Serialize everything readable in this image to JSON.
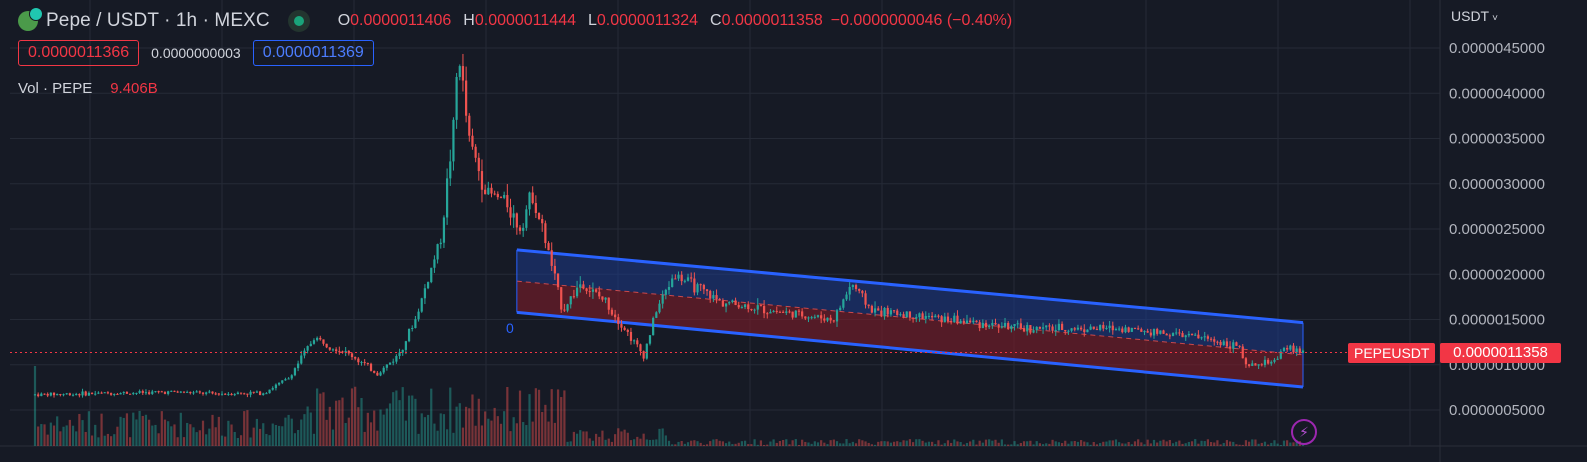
{
  "header": {
    "symbol": "Pepe / USDT · 1h · MEXC",
    "ohlc": [
      {
        "label": "O",
        "value": "0.0000011406"
      },
      {
        "label": "H",
        "value": "0.0000011444"
      },
      {
        "label": "L",
        "value": "0.0000011324"
      },
      {
        "label": "C",
        "value": "0.0000011358"
      }
    ],
    "change": "−0.0000000046 (−0.40%)",
    "sell_price": "0.0000011366",
    "spread": "0.0000000003",
    "buy_price": "0.0000011369",
    "volume_label": "Vol · PEPE",
    "volume_value": "9.406B"
  },
  "currency": {
    "label": "USDT",
    "chevron": "˅"
  },
  "price_tag": {
    "symbol": "PEPEUSDT",
    "last": "0.0000011358"
  },
  "channel_label": "0",
  "bolt_icon": "⚡",
  "colors": {
    "up": "#26a69a",
    "down": "#ef5350",
    "channel_line": "#2962ff",
    "channel_fill_upper": "#1e3a8a",
    "channel_fill_lower": "#7f1d2a",
    "accent_red": "#f23645",
    "background": "#161a25",
    "grid": "#252a36"
  },
  "chart_data": {
    "type": "candlestick",
    "title": "Pepe / USDT · 1h · MEXC",
    "y_axis": {
      "min": 0,
      "max": 5e-06,
      "ticks": [
        {
          "value": 4.5e-06,
          "label": "0.0000045000"
        },
        {
          "value": 4e-06,
          "label": "0.0000040000"
        },
        {
          "value": 3.5e-06,
          "label": "0.0000035000"
        },
        {
          "value": 3e-06,
          "label": "0.0000030000"
        },
        {
          "value": 2.5e-06,
          "label": "0.0000025000"
        },
        {
          "value": 2e-06,
          "label": "0.0000020000"
        },
        {
          "value": 1.5e-06,
          "label": "0.0000015000"
        },
        {
          "value": 1e-06,
          "label": "0.0000010000"
        },
        {
          "value": 5e-07,
          "label": "0.0000005000"
        }
      ]
    },
    "bars": 400,
    "last_price": 1.1358e-06,
    "close_path": [
      [
        0,
        6.7e-07
      ],
      [
        55,
        7e-07
      ],
      [
        70,
        6.8e-07
      ],
      [
        90,
        6.9e-07
      ],
      [
        100,
        8.5e-07
      ],
      [
        110,
        1.3e-06
      ],
      [
        125,
        1.1e-06
      ],
      [
        135,
        9e-07
      ],
      [
        143,
        1.1e-06
      ],
      [
        150,
        1.5e-06
      ],
      [
        160,
        2.4e-06
      ],
      [
        165,
        3.6e-06
      ],
      [
        167,
        4.5e-06
      ],
      [
        171,
        3.5e-06
      ],
      [
        178,
        2.9e-06
      ],
      [
        186,
        2.8e-06
      ],
      [
        191,
        2.5e-06
      ],
      [
        196,
        2.9e-06
      ],
      [
        202,
        2.3e-06
      ],
      [
        208,
        1.6e-06
      ],
      [
        215,
        1.9e-06
      ],
      [
        225,
        1.7e-06
      ],
      [
        235,
        1.3e-06
      ],
      [
        240,
        1.1e-06
      ],
      [
        245,
        1.6e-06
      ],
      [
        252,
        2e-06
      ],
      [
        270,
        1.7e-06
      ],
      [
        290,
        1.6e-06
      ],
      [
        315,
        1.5e-06
      ],
      [
        322,
        1.9e-06
      ],
      [
        330,
        1.6e-06
      ],
      [
        360,
        1.5e-06
      ],
      [
        390,
        1.4e-06
      ],
      [
        430,
        1.4e-06
      ],
      [
        460,
        1.3e-06
      ],
      [
        475,
        1.2e-06
      ],
      [
        477,
        9.7e-07
      ],
      [
        490,
        1.05e-06
      ],
      [
        493,
        1.2e-06
      ],
      [
        500,
        1.1358e-06
      ]
    ],
    "channel": {
      "start_bar": 190,
      "end_bar": 500,
      "upper": [
        2.2692e-06,
        1.4657e-06
      ],
      "middle": [
        1.9242e-06,
        1.1097e-06
      ],
      "lower": [
        1.5792e-06,
        7.537e-07
      ]
    }
  }
}
